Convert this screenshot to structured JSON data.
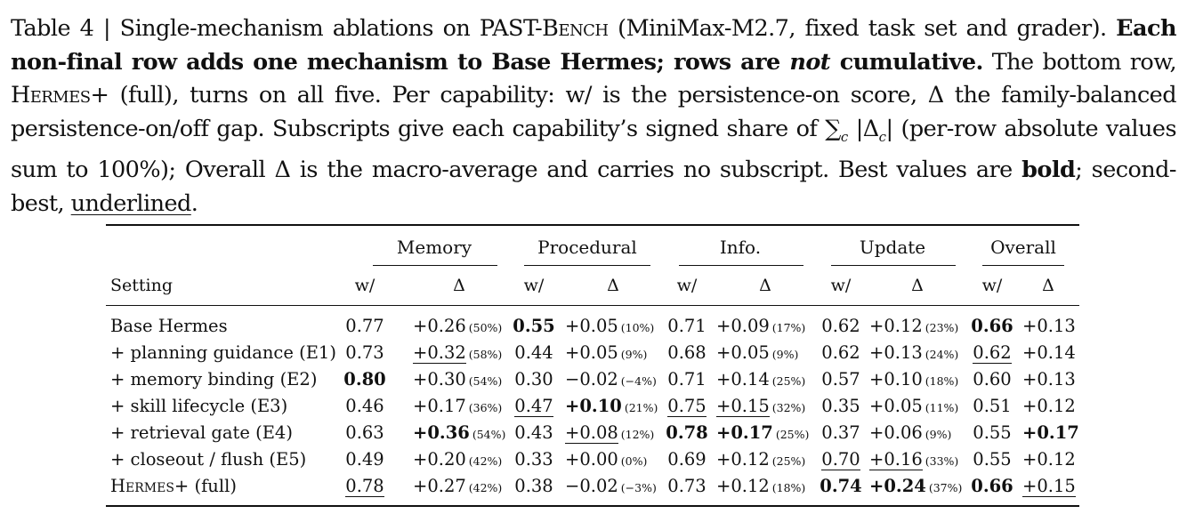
{
  "caption": {
    "c1": "Table 4 | Single-mechanism ablations on PAST-B",
    "c1_sc": "ench",
    "c2": " (MiniMax-M2.7, fixed task set and grader). ",
    "c3_bold": "Each non-final row adds one mechanism to Base Hermes; rows are ",
    "c4_bolditalic": "not",
    "c5_bold": " cumulative.",
    "c6": " The bottom row, ",
    "c7_sc": "Hermes",
    "c8": "+ (full), turns on all five. Per capability: w/ is the persistence-on score, Δ the family-balanced persistence-on/off gap. Subscripts give each capability’s signed share of ∑",
    "c8_sub": "c",
    "c9": " |Δ",
    "c9_sub": "c",
    "c10": "| (per-row absolute values sum to 100%); Overall Δ is the macro-average and carries no subscript. Best values are ",
    "c11_bold": "bold",
    "c12": "; second-best, ",
    "c13_ul": "underlined",
    "c14": "."
  },
  "table": {
    "groups": [
      "Memory",
      "Procedural",
      "Info.",
      "Update",
      "Overall"
    ],
    "setting_label": "Setting",
    "w_label": "w/",
    "d_label": "Δ",
    "rows": [
      {
        "setting": "Base Hermes",
        "cells": [
          [
            "0.77",
            "",
            "+0.26",
            "",
            "(50%)"
          ],
          [
            "0.55",
            "b",
            "+0.05",
            "",
            "(10%)"
          ],
          [
            "0.71",
            "",
            "+0.09",
            "",
            "(17%)"
          ],
          [
            "0.62",
            "",
            "+0.12",
            "",
            "(23%)"
          ],
          [
            "0.66",
            "b",
            "+0.13",
            "",
            ""
          ]
        ]
      },
      {
        "setting": "+ planning guidance (E1)",
        "cells": [
          [
            "0.73",
            "",
            "+0.32",
            "u",
            "(58%)"
          ],
          [
            "0.44",
            "",
            "+0.05",
            "",
            "(9%)"
          ],
          [
            "0.68",
            "",
            "+0.05",
            "",
            "(9%)"
          ],
          [
            "0.62",
            "",
            "+0.13",
            "",
            "(24%)"
          ],
          [
            "0.62",
            "u",
            "+0.14",
            "",
            ""
          ]
        ]
      },
      {
        "setting": "+ memory binding (E2)",
        "cells": [
          [
            "0.80",
            "b",
            "+0.30",
            "",
            "(54%)"
          ],
          [
            "0.30",
            "",
            "−0.02",
            "",
            "(−4%)"
          ],
          [
            "0.71",
            "",
            "+0.14",
            "",
            "(25%)"
          ],
          [
            "0.57",
            "",
            "+0.10",
            "",
            "(18%)"
          ],
          [
            "0.60",
            "",
            "+0.13",
            "",
            ""
          ]
        ]
      },
      {
        "setting": "+ skill lifecycle (E3)",
        "cells": [
          [
            "0.46",
            "",
            "+0.17",
            "",
            "(36%)"
          ],
          [
            "0.47",
            "u",
            "+0.10",
            "b",
            "(21%)"
          ],
          [
            "0.75",
            "u",
            "+0.15",
            "u",
            "(32%)"
          ],
          [
            "0.35",
            "",
            "+0.05",
            "",
            "(11%)"
          ],
          [
            "0.51",
            "",
            "+0.12",
            "",
            ""
          ]
        ]
      },
      {
        "setting": "+ retrieval gate (E4)",
        "cells": [
          [
            "0.63",
            "",
            "+0.36",
            "b",
            "(54%)"
          ],
          [
            "0.43",
            "",
            "+0.08",
            "u",
            "(12%)"
          ],
          [
            "0.78",
            "b",
            "+0.17",
            "b",
            "(25%)"
          ],
          [
            "0.37",
            "",
            "+0.06",
            "",
            "(9%)"
          ],
          [
            "0.55",
            "",
            "+0.17",
            "b",
            ""
          ]
        ]
      },
      {
        "setting": "+ closeout / flush (E5)",
        "cells": [
          [
            "0.49",
            "",
            "+0.20",
            "",
            "(42%)"
          ],
          [
            "0.33",
            "",
            "+0.00",
            "",
            "(0%)"
          ],
          [
            "0.69",
            "",
            "+0.12",
            "",
            "(25%)"
          ],
          [
            "0.70",
            "u",
            "+0.16",
            "u",
            "(33%)"
          ],
          [
            "0.55",
            "",
            "+0.12",
            "",
            ""
          ]
        ]
      },
      {
        "setting_sc": "Hermes",
        "setting_tail": "+ (full)",
        "cells": [
          [
            "0.78",
            "u",
            "+0.27",
            "",
            "(42%)"
          ],
          [
            "0.38",
            "",
            "−0.02",
            "",
            "(−3%)"
          ],
          [
            "0.73",
            "",
            "+0.12",
            "",
            "(18%)"
          ],
          [
            "0.74",
            "b",
            "+0.24",
            "b",
            "(37%)"
          ],
          [
            "0.66",
            "b",
            "+0.15",
            "u",
            ""
          ]
        ]
      }
    ]
  }
}
